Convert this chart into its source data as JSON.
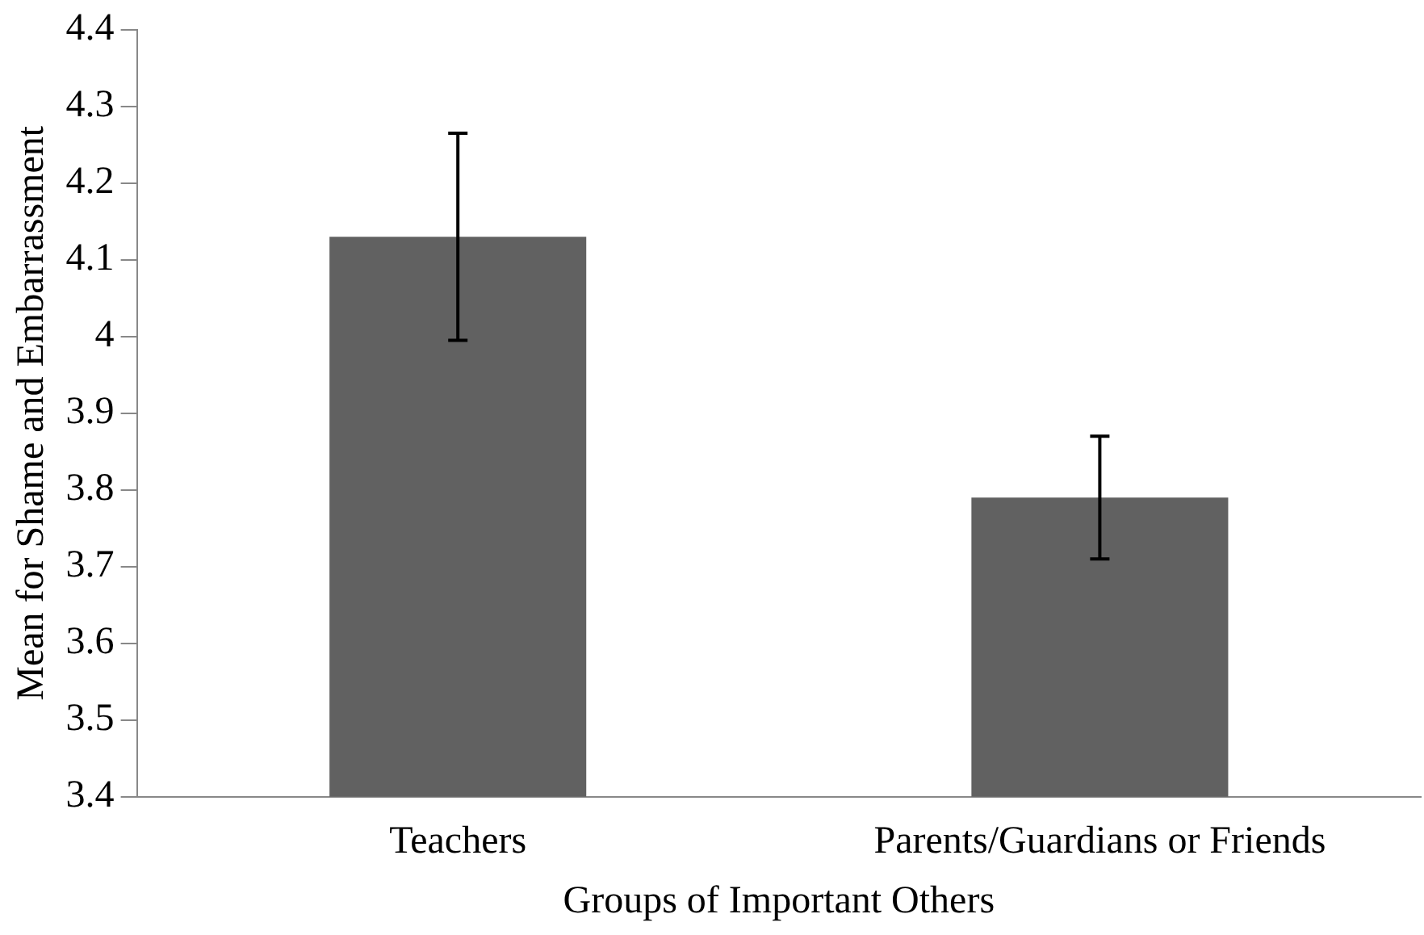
{
  "chart_data": {
    "type": "bar",
    "xlabel": "Groups of Important Others",
    "ylabel": "Mean for Shame and Embarrassment",
    "categories": [
      "Teachers",
      "Parents/Guardians or Friends"
    ],
    "values": [
      4.13,
      3.79
    ],
    "errors": [
      0.135,
      0.08
    ],
    "color": "#616161",
    "ylim": [
      3.4,
      4.4
    ],
    "yticks": [
      3.4,
      3.5,
      3.6,
      3.7,
      3.8,
      3.9,
      {
        "value": 4,
        "label": "4"
      },
      4.1,
      4.2,
      4.3,
      4.4
    ],
    "grid": false,
    "legend": false
  }
}
